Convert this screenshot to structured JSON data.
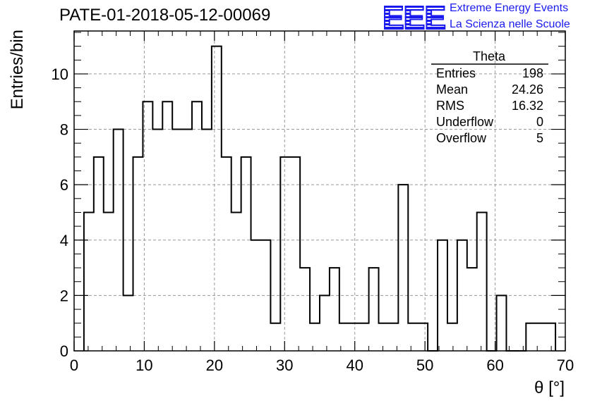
{
  "header": {
    "run_title": "PATE-01-2018-05-12-00069",
    "logo_mark": "EEE",
    "logo_line1": "Extreme Energy Events",
    "logo_line2": "La Scienza nelle Scuole",
    "logo_color": "#1a1aee"
  },
  "chart_data": {
    "type": "histogram",
    "xlabel": "θ [°]",
    "ylabel": "Entries/bin",
    "xlim": [
      0,
      70
    ],
    "ylim": [
      0,
      11.55
    ],
    "grid": true,
    "bin_width": 1.4,
    "bin_start": 1.4,
    "values": [
      5,
      7,
      5,
      8,
      2,
      7,
      9,
      8,
      9,
      8,
      8,
      9,
      8,
      11,
      7,
      5,
      7,
      4,
      4,
      1,
      7,
      7,
      3,
      1,
      2,
      3,
      1,
      1,
      1,
      3,
      1,
      1,
      6,
      1,
      1,
      0,
      4,
      1,
      4,
      3,
      5,
      0,
      2,
      0,
      0,
      1,
      1,
      1
    ],
    "x_ticks": [
      "0",
      "10",
      "20",
      "30",
      "40",
      "50",
      "60",
      "70"
    ],
    "y_ticks": [
      "0",
      "2",
      "4",
      "6",
      "8",
      "10"
    ],
    "stats_box": {
      "title": "Theta",
      "rows": [
        {
          "label": "Entries",
          "value": "198"
        },
        {
          "label": "Mean",
          "value": "24.26"
        },
        {
          "label": "RMS",
          "value": "16.32"
        },
        {
          "label": "Underflow",
          "value": "0"
        },
        {
          "label": "Overflow",
          "value": "5"
        }
      ]
    },
    "line_color": "#000000",
    "grid_color": "#999999"
  }
}
